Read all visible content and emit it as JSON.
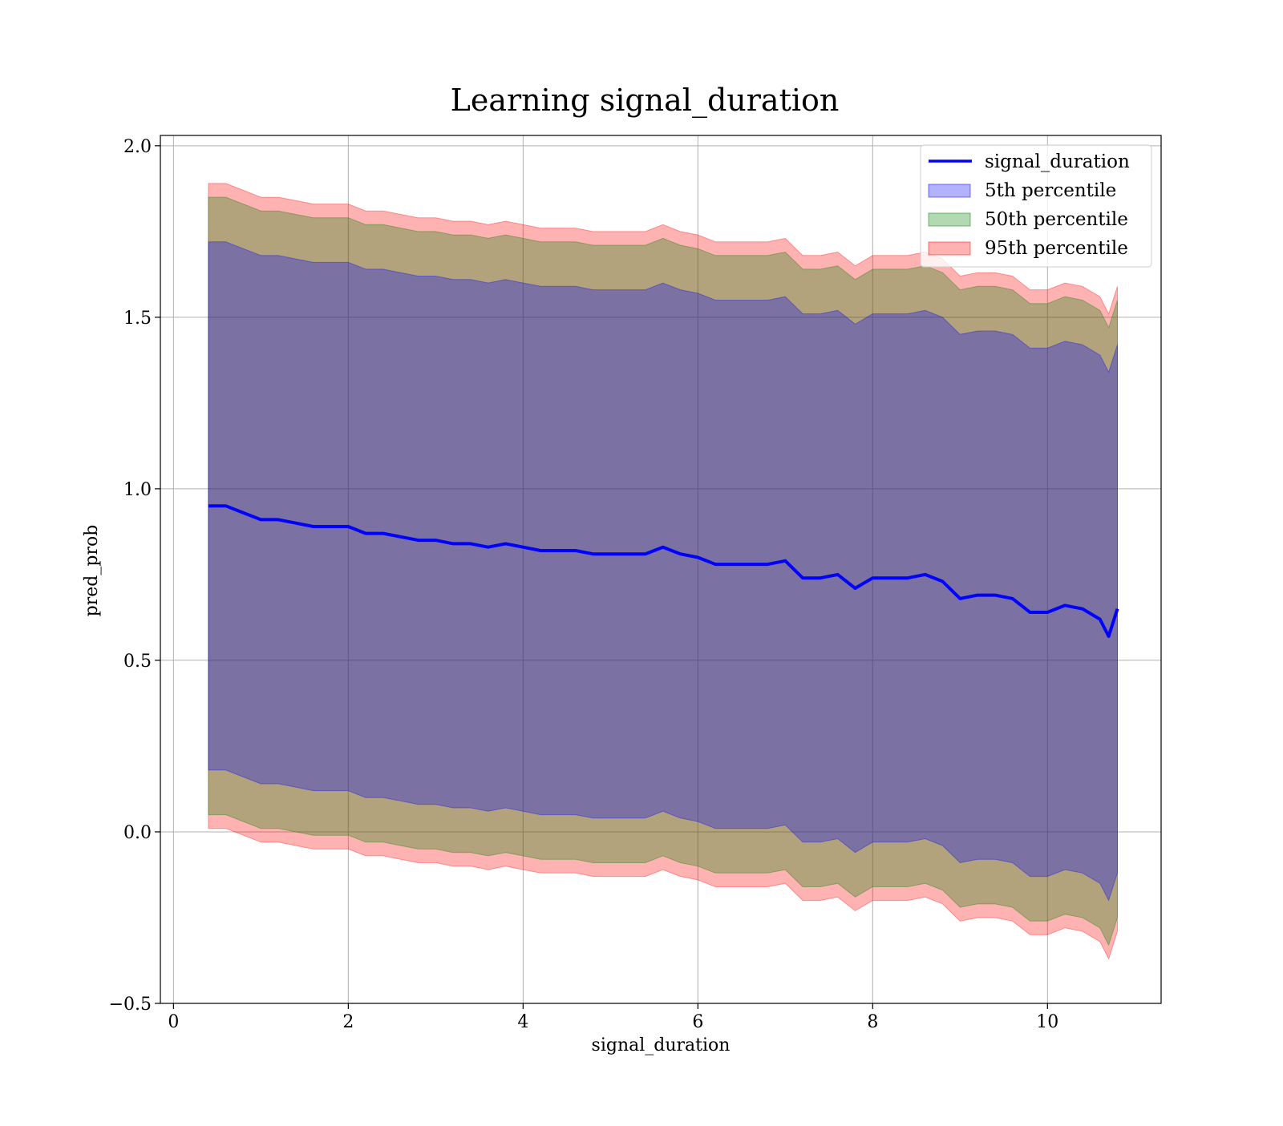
{
  "chart_data": {
    "type": "area",
    "title": "Learning signal_duration",
    "xlabel": "signal_duration",
    "ylabel": "pred_prob",
    "xlim": [
      -0.15,
      11.3
    ],
    "ylim": [
      -0.5,
      2.03
    ],
    "x_ticks": [
      0,
      2,
      4,
      6,
      8,
      10
    ],
    "y_ticks": [
      -0.5,
      0.0,
      0.5,
      1.0,
      1.5,
      2.0
    ],
    "x_tick_labels": [
      "0",
      "2",
      "4",
      "6",
      "8",
      "10"
    ],
    "y_tick_labels": [
      "−0.5",
      "0.0",
      "0.5",
      "1.0",
      "1.5",
      "2.0"
    ],
    "grid": true,
    "legend_position": "top-right",
    "colors": {
      "line": "#0000ff",
      "p5": "#0000ff",
      "p50": "#008000",
      "p95": "#ff0000"
    },
    "band_opacity": 0.3,
    "x": [
      0.4,
      0.6,
      0.8,
      1.0,
      1.2,
      1.4,
      1.6,
      1.8,
      2.0,
      2.2,
      2.4,
      2.6,
      2.8,
      3.0,
      3.2,
      3.4,
      3.6,
      3.8,
      4.0,
      4.2,
      4.4,
      4.6,
      4.8,
      5.0,
      5.2,
      5.4,
      5.6,
      5.8,
      6.0,
      6.2,
      6.4,
      6.6,
      6.8,
      7.0,
      7.2,
      7.4,
      7.6,
      7.8,
      8.0,
      8.2,
      8.4,
      8.6,
      8.8,
      9.0,
      9.2,
      9.4,
      9.6,
      9.8,
      10.0,
      10.2,
      10.4,
      10.6,
      10.7,
      10.8
    ],
    "mean": [
      0.95,
      0.95,
      0.93,
      0.91,
      0.91,
      0.9,
      0.89,
      0.89,
      0.89,
      0.87,
      0.87,
      0.86,
      0.85,
      0.85,
      0.84,
      0.84,
      0.83,
      0.84,
      0.83,
      0.82,
      0.82,
      0.82,
      0.81,
      0.81,
      0.81,
      0.81,
      0.83,
      0.81,
      0.8,
      0.78,
      0.78,
      0.78,
      0.78,
      0.79,
      0.74,
      0.74,
      0.75,
      0.71,
      0.74,
      0.74,
      0.74,
      0.75,
      0.73,
      0.68,
      0.69,
      0.69,
      0.68,
      0.64,
      0.64,
      0.66,
      0.65,
      0.62,
      0.57,
      0.65
    ],
    "series": [
      {
        "name": "signal_duration",
        "kind": "line",
        "values_key": "mean"
      },
      {
        "name": "5th percentile",
        "kind": "band",
        "half_width": 0.77
      },
      {
        "name": "50th percentile",
        "kind": "band",
        "half_width": 0.9
      },
      {
        "name": "95th percentile",
        "kind": "band",
        "half_width": 0.94
      }
    ]
  }
}
